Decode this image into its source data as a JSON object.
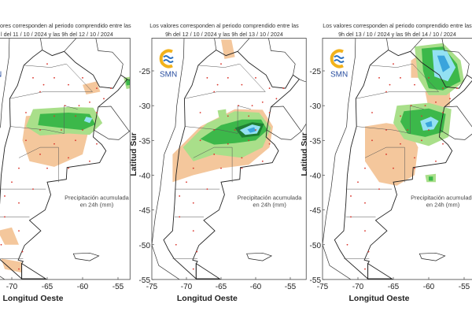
{
  "colors": {
    "orange": "#f4c79c",
    "light_green": "#a9df8a",
    "green": "#3cb84a",
    "dark_green": "#1e7f33",
    "cyan": "#93e1f2",
    "blue": "#3aa4dc",
    "station_dot": "#d9342b",
    "logo_yellow": "#f2b21b",
    "logo_blue": "#2a6fc0"
  },
  "legend_note": {
    "line1": "Precipitación acumulada",
    "line2": "en 24h (mm)"
  },
  "x_axis": {
    "label": "Longitud Oeste",
    "ticks": [
      "-75",
      "-70",
      "-65",
      "-60",
      "-55"
    ]
  },
  "y_axis": {
    "label": "Latitud Sur",
    "ticks": [
      "-25",
      "-30",
      "-35",
      "-40",
      "-45",
      "-50",
      "-55"
    ]
  },
  "logo": {
    "text": "SMN"
  },
  "panels": [
    {
      "title1": "ores corresponden al periodo comprendido entre las",
      "title2": "l del 11 / 10 / 2024  y las 9h del 12 / 10 / 2024"
    },
    {
      "title1": "Los valores corresponden al periodo comprendido entre las",
      "title2": "9h del 12 / 10 / 2024  y las 9h del 13 / 10 / 2024"
    },
    {
      "title1": "Los valores corresponden al periodo comprendido entre las",
      "title2": "9h del 13 / 10 / 2024  y las 9h del 14 / 10 / 2024"
    }
  ]
}
